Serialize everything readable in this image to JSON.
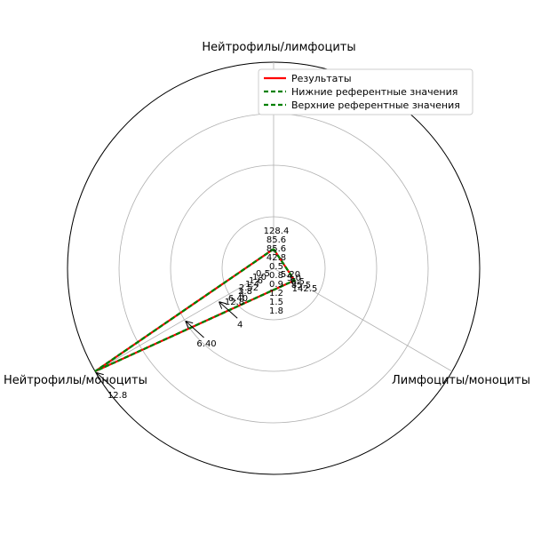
{
  "chart_data": {
    "type": "radar",
    "axes": [
      "Нейтрофилы/лимфоциты",
      "Лимфоциты/моноциты",
      "Нейтрофилы/моноциты"
    ],
    "series": [
      {
        "name": "Результаты",
        "color": "#ff0000",
        "style": "solid",
        "values": [
          1.2,
          1.5,
          12.8
        ]
      },
      {
        "name": "Нижние референтные значения",
        "color": "#008000",
        "style": "dashed",
        "values": [
          1.2,
          1.5,
          12.8
        ]
      },
      {
        "name": "Верхние референтные значения",
        "color": "#008000",
        "style": "dashed",
        "values": [
          1.2,
          1.5,
          12.8
        ]
      }
    ],
    "rings": 4,
    "grid": true,
    "legend_position": "top-right",
    "value_labels": {
      "Нейтрофилы/лимфоциты": [
        "128.4",
        "85.6",
        "85.6",
        "42.8",
        "0.5",
        "0.8",
        "0.9",
        "1.2",
        "1.5",
        "1.8"
      ],
      "Лимфоциты/моноциты": [
        "5.20",
        "5.0",
        "6.5",
        "85.5",
        "142.5"
      ],
      "Нейтрофилы/моноциты": [
        "0.5",
        "1.0",
        "1.6",
        "1.4",
        "2.52",
        "2.8",
        "4",
        "6.40",
        "12.8"
      ]
    },
    "annotations": [
      {
        "text": "4",
        "axis": "Нейтрофилы/моноциты",
        "value": 4
      },
      {
        "text": "6.40",
        "axis": "Нейтрофилы/моноциты",
        "value": 6.4
      },
      {
        "text": "12.8",
        "axis": "Нейтрофилы/моноциты",
        "value": 12.8
      }
    ]
  }
}
